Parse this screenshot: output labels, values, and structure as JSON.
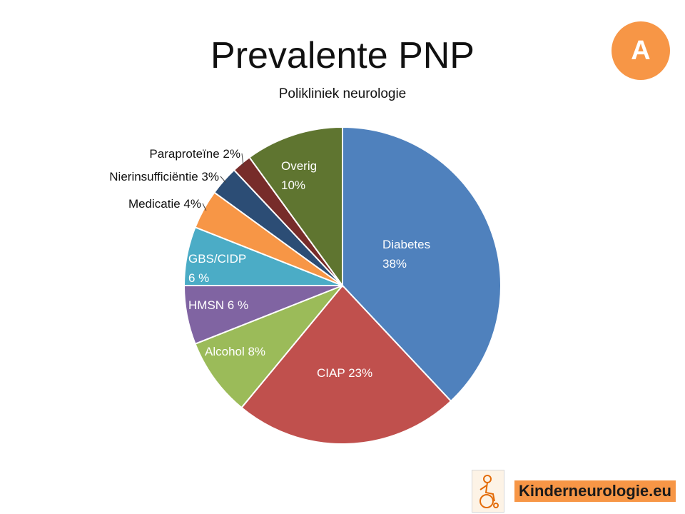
{
  "title": "Prevalente PNP",
  "subtitle": "Polikliniek neurologie",
  "badge": "A",
  "logo_text": "Kinderneurologie.eu",
  "chart_data": {
    "type": "pie",
    "title": "Prevalente PNP",
    "subtitle": "Polikliniek neurologie",
    "slices": [
      {
        "label": "Diabetes",
        "value_label": "38%",
        "value": 38,
        "color": "#4f81bd"
      },
      {
        "label": "CIAP",
        "value_label": "23%",
        "value": 23,
        "color": "#c0504d"
      },
      {
        "label": "Alcohol",
        "value_label": "8%",
        "value": 8,
        "color": "#9bbb59"
      },
      {
        "label": "HMSN",
        "value_label": "6 %",
        "value": 6,
        "color": "#8064a2"
      },
      {
        "label": "GBS/CIDP",
        "value_label": "6 %",
        "value": 6,
        "color": "#4bacc6"
      },
      {
        "label": "Medicatie",
        "value_label": "4%",
        "value": 4,
        "color": "#f79646"
      },
      {
        "label": "Nierinsufficiëntie",
        "value_label": "3%",
        "value": 3,
        "color": "#2c4d75"
      },
      {
        "label": "Paraproteïne",
        "value_label": "2%",
        "value": 2,
        "color": "#772c2a"
      },
      {
        "label": "Overig",
        "value_label": "10%",
        "value": 10,
        "color": "#5f7530"
      }
    ]
  }
}
